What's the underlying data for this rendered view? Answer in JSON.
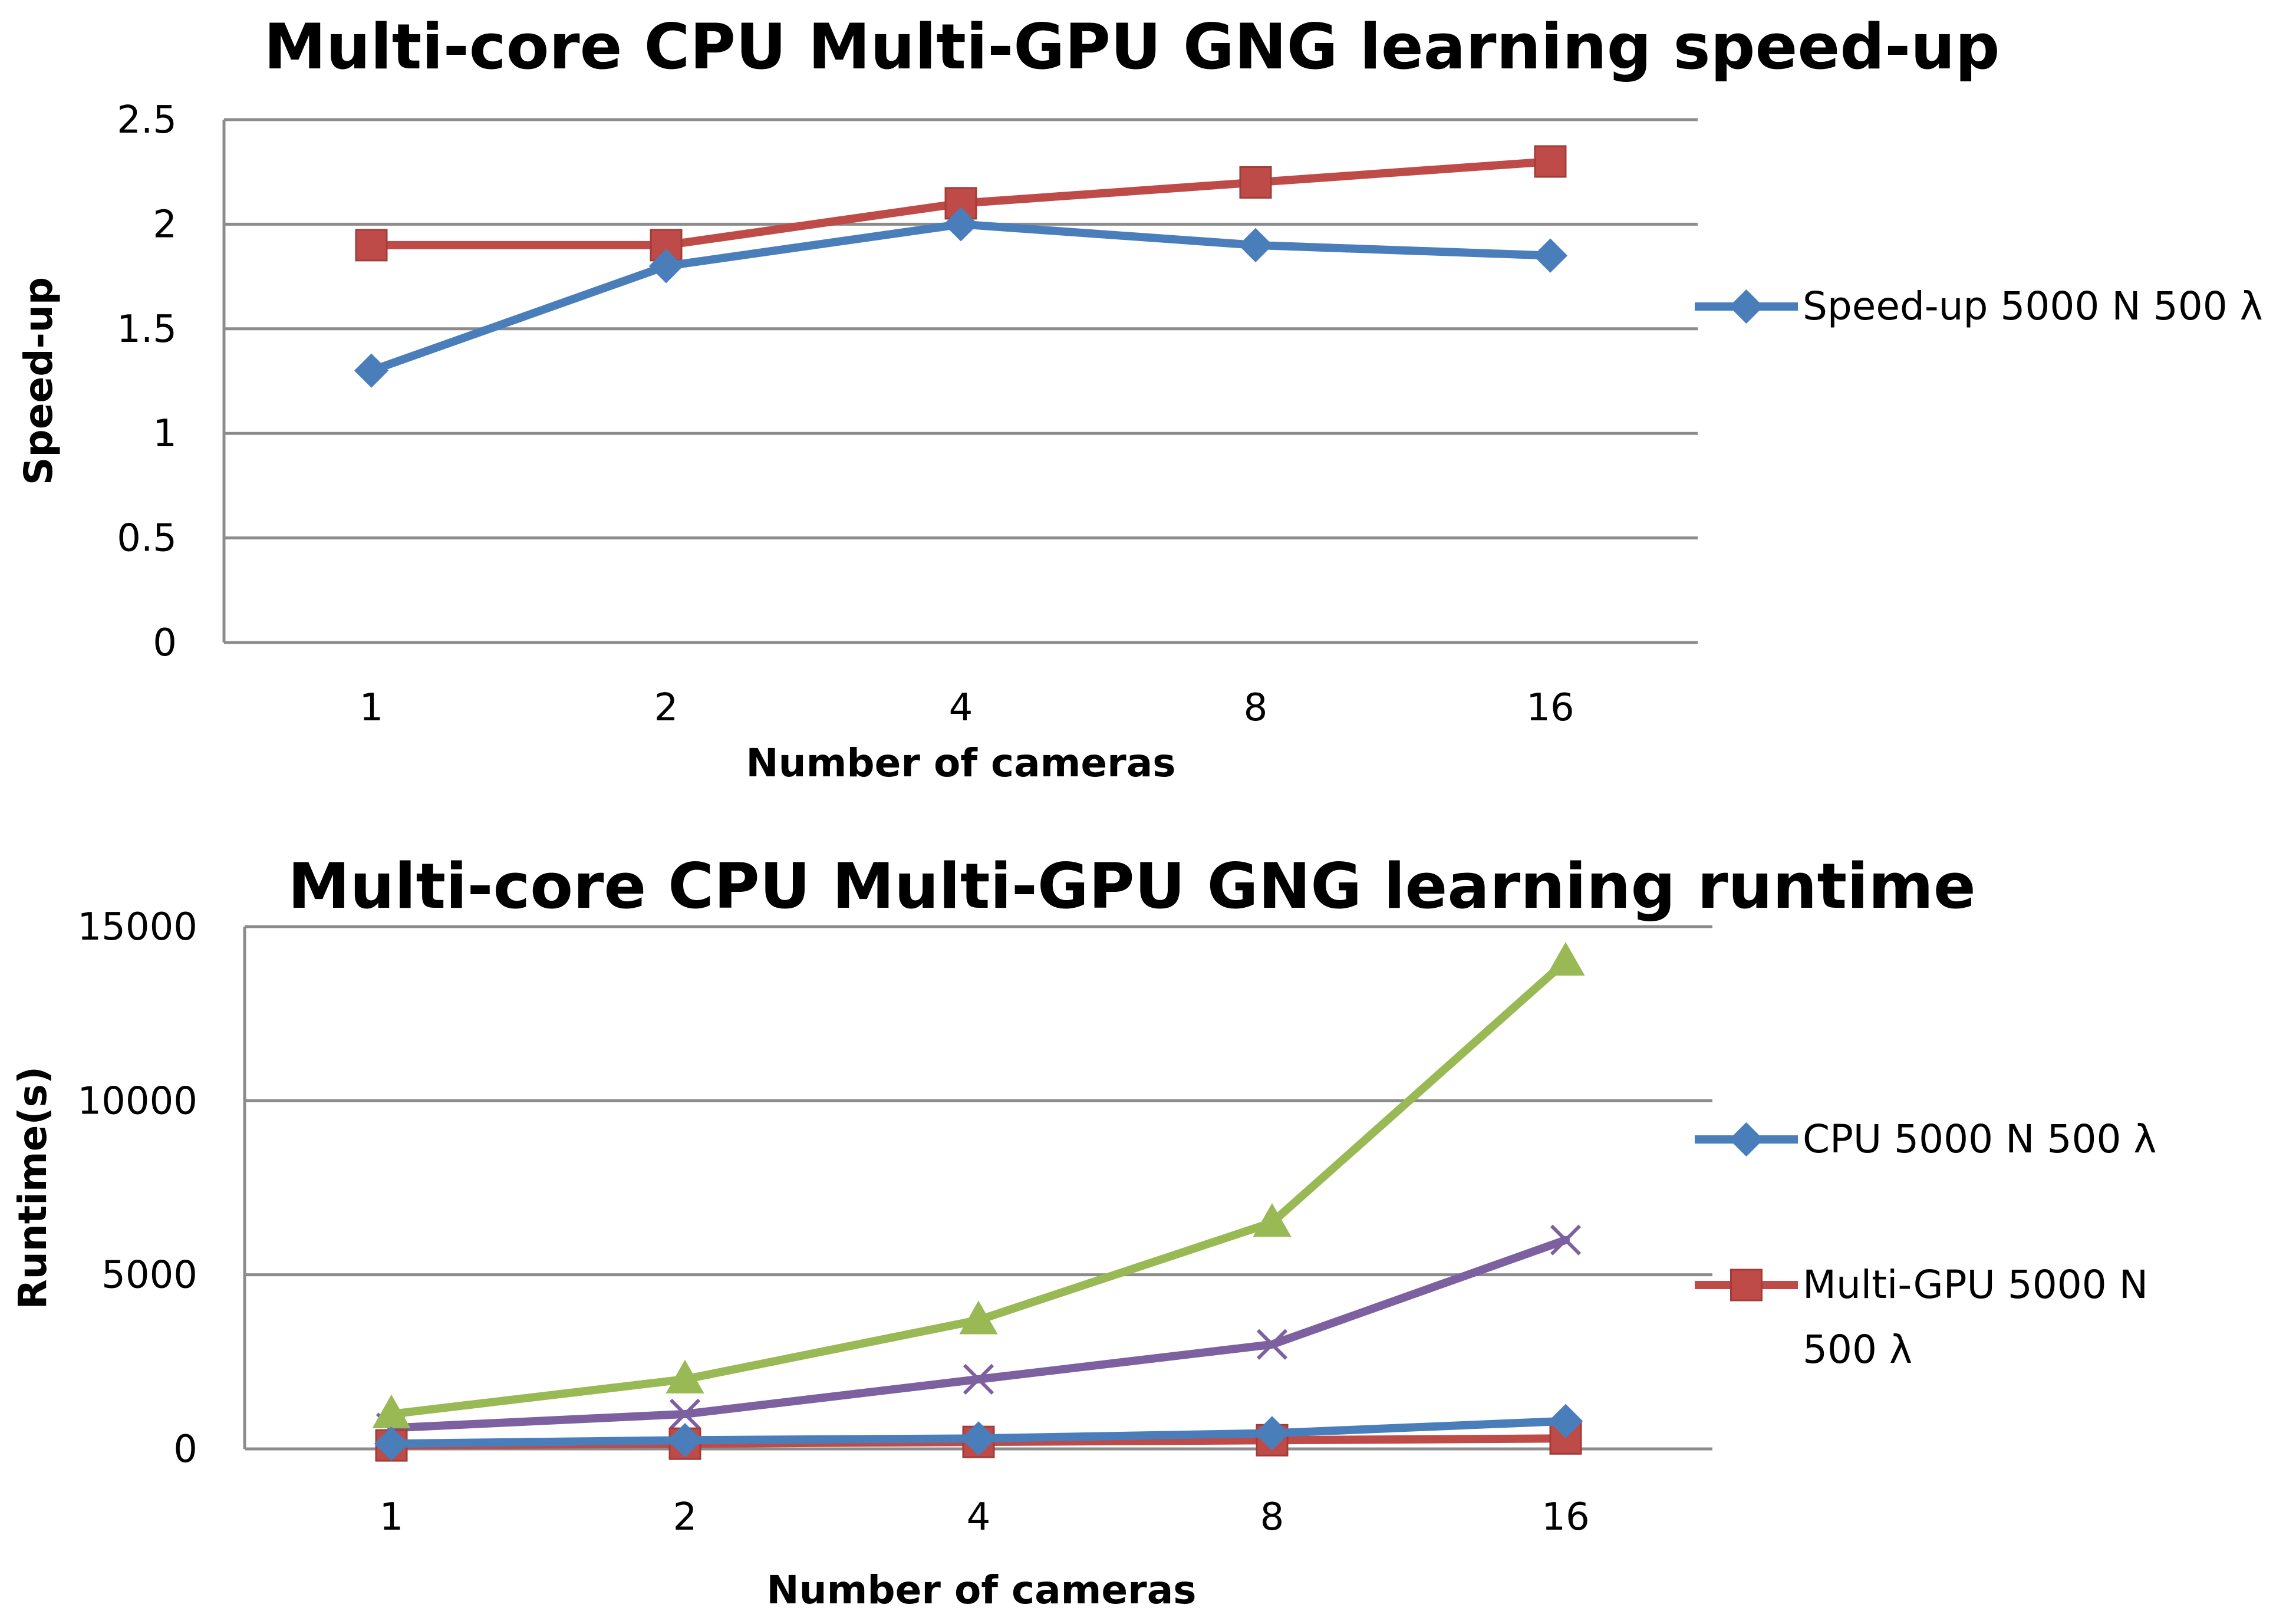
{
  "chart_data": [
    {
      "type": "line",
      "title": "Multi-core CPU Multi-GPU GNG learning speed-up",
      "xlabel": "Number of cameras",
      "ylabel": "Speed-up",
      "categories": [
        "1",
        "2",
        "4",
        "8",
        "16"
      ],
      "ylim": [
        0,
        2.5
      ],
      "yticks": [
        "0",
        "0.5",
        "1",
        "1.5",
        "2",
        "2.5"
      ],
      "grid": true,
      "legend_position": "right",
      "series": [
        {
          "name": "Speed-up 5000 N 500 λ",
          "values": [
            1.3,
            1.8,
            2.0,
            1.9,
            1.85
          ],
          "color": "#4a7ebb",
          "marker": "diamond",
          "show_in_legend": true
        },
        {
          "name": "",
          "values": [
            1.9,
            1.9,
            2.1,
            2.2,
            2.3
          ],
          "color": "#be4b48",
          "marker": "square",
          "show_in_legend": false
        }
      ]
    },
    {
      "type": "line",
      "title": "Multi-core CPU Multi-GPU GNG learning runtime",
      "xlabel": "Number of cameras",
      "ylabel": "Runtime(s)",
      "categories": [
        "1",
        "2",
        "4",
        "8",
        "16"
      ],
      "ylim": [
        0,
        15000
      ],
      "yticks": [
        "0",
        "5000",
        "10000",
        "15000"
      ],
      "grid": true,
      "legend_position": "right",
      "series": [
        {
          "name": "CPU 5000 N 500 λ",
          "values": [
            150,
            250,
            300,
            450,
            800
          ],
          "color": "#4a7ebb",
          "marker": "diamond",
          "show_in_legend": true
        },
        {
          "name": "Multi-GPU 5000 N 500 λ",
          "legend_lines": [
            "Multi-GPU 5000 N",
            "500 λ"
          ],
          "values": [
            100,
            150,
            200,
            250,
            300
          ],
          "color": "#be4b48",
          "marker": "square",
          "show_in_legend": true
        },
        {
          "name": "",
          "values": [
            1000,
            2000,
            3700,
            6500,
            14000
          ],
          "color": "#98b954",
          "marker": "triangle",
          "show_in_legend": false
        },
        {
          "name": "",
          "values": [
            600,
            1000,
            2000,
            3000,
            6000
          ],
          "color": "#7d60a0",
          "marker": "x",
          "show_in_legend": false
        }
      ]
    }
  ]
}
